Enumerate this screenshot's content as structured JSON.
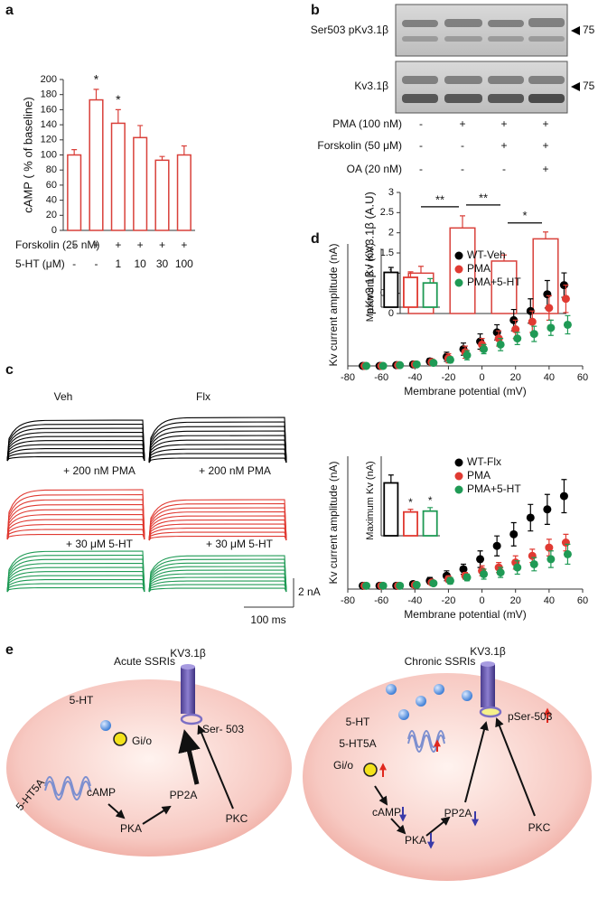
{
  "panel_labels": [
    "a",
    "b",
    "c",
    "d",
    "e"
  ],
  "blot": {
    "rows": [
      "Ser503 pKv3.1β",
      "Kv3.1β"
    ],
    "markers": [
      "75",
      "75"
    ]
  },
  "traces": {
    "left_labels": [
      "Veh",
      "+ 200 nM PMA",
      "+ 30 μM 5-HT"
    ],
    "right_labels": [
      "Flx",
      "+ 200 nM PMA",
      "+ 30 μM 5-HT"
    ],
    "scale_y": "2 nA",
    "scale_x": "100 ms"
  },
  "chart_data": [
    {
      "type": "bar",
      "ylabel": "cAMP ( % of baseline)",
      "color": "#d9403a",
      "values": [
        100,
        173,
        142,
        123,
        93,
        100
      ],
      "errors": [
        7,
        14,
        18,
        16,
        5,
        12
      ],
      "ylim": [
        0,
        200
      ],
      "yticks": [
        0,
        20,
        40,
        60,
        80,
        100,
        120,
        140,
        160,
        180,
        200
      ],
      "category_rows": [
        {
          "label": "Forskolin (25 nM)",
          "values": [
            "-",
            "+",
            "+",
            "+",
            "+",
            "+"
          ]
        },
        {
          "label": "5-HT (μM)",
          "values": [
            "-",
            "-",
            "1",
            "10",
            "30",
            "100"
          ]
        }
      ],
      "annotations": [
        {
          "index": 1,
          "text": "*"
        },
        {
          "index": 2,
          "text": "*"
        }
      ]
    },
    {
      "type": "bar",
      "ylabel": "pKv3.1β / KV3.1β (A.U)",
      "color": "#d9403a",
      "values": [
        1,
        2.12,
        1.3,
        1.85
      ],
      "errors": [
        0.17,
        0.3,
        0.15,
        0.17
      ],
      "ylim": [
        0,
        3
      ],
      "yticks": [
        0,
        0.5,
        1,
        1.5,
        2,
        2.5,
        3
      ],
      "category_rows": [
        {
          "label": "PMA (100 nM)",
          "values": [
            "-",
            "+",
            "+",
            "+"
          ]
        },
        {
          "label": "Forskolin (50 μM)",
          "values": [
            "-",
            "-",
            "+",
            "+"
          ]
        },
        {
          "label": "OA (20 nM)",
          "values": [
            "-",
            "-",
            "-",
            "+"
          ]
        }
      ],
      "brackets": [
        {
          "from": 0,
          "to": 1,
          "text": "**"
        },
        {
          "from": 1,
          "to": 2,
          "text": "**"
        },
        {
          "from": 2,
          "to": 3,
          "text": "*"
        }
      ]
    },
    {
      "type": "scatter",
      "xlabel": "Membrane potential (mV)",
      "ylabel": "Kv current amplitude (nA)",
      "legend": "top-right",
      "x": [
        -70,
        -60,
        -50,
        -40,
        -30,
        -20,
        -10,
        0,
        10,
        20,
        30,
        40,
        50
      ],
      "xlim": [
        -80,
        60
      ],
      "xticks": [
        -80,
        -60,
        -40,
        -20,
        0,
        20,
        40,
        60
      ],
      "ylim": [
        0,
        8
      ],
      "series": [
        {
          "name": "WT-Veh",
          "color": "#000000",
          "values": [
            0,
            0,
            0.05,
            0.1,
            0.3,
            0.6,
            1.1,
            1.6,
            2.2,
            3.0,
            3.6,
            4.7,
            5.3
          ],
          "errors": [
            0.05,
            0.05,
            0.05,
            0.1,
            0.2,
            0.3,
            0.4,
            0.5,
            0.5,
            0.7,
            0.8,
            0.9,
            0.8
          ]
        },
        {
          "name": "PMA",
          "color": "#e03a32",
          "values": [
            0,
            0,
            0.05,
            0.1,
            0.25,
            0.5,
            0.9,
            1.4,
            1.8,
            2.4,
            2.9,
            3.8,
            4.4
          ],
          "errors": [
            0.05,
            0.05,
            0.05,
            0.1,
            0.2,
            0.3,
            0.4,
            0.4,
            0.5,
            0.6,
            0.7,
            0.8,
            0.9
          ]
        },
        {
          "name": "PMA+5-HT",
          "color": "#1f9a55",
          "values": [
            0,
            0,
            0.05,
            0.1,
            0.2,
            0.4,
            0.7,
            1.1,
            1.4,
            1.8,
            2.1,
            2.5,
            2.7
          ],
          "errors": [
            0.05,
            0.05,
            0.05,
            0.1,
            0.15,
            0.2,
            0.3,
            0.3,
            0.4,
            0.4,
            0.5,
            0.5,
            0.6
          ]
        }
      ],
      "inset": {
        "ylabel": "Maximum Kv (nA)",
        "ylim": [
          0,
          8
        ],
        "values": [
          5.6,
          4.8,
          3.9
        ],
        "errors": [
          0.8,
          0.9,
          0.7
        ],
        "colors": [
          "#000000",
          "#e03a32",
          "#1f9a55"
        ]
      }
    },
    {
      "type": "scatter",
      "xlabel": "Membrane potential (mV)",
      "ylabel": "Kv current amplitude (nA)",
      "legend": "top-right",
      "x": [
        -70,
        -60,
        -50,
        -40,
        -30,
        -20,
        -10,
        0,
        10,
        20,
        30,
        40,
        50
      ],
      "xlim": [
        -80,
        60
      ],
      "xticks": [
        -80,
        -60,
        -40,
        -20,
        0,
        20,
        40,
        60
      ],
      "ylim": [
        0,
        8
      ],
      "series": [
        {
          "name": "WT-Flx",
          "color": "#000000",
          "values": [
            0.2,
            0.2,
            0.2,
            0.3,
            0.5,
            0.8,
            1.2,
            1.8,
            2.6,
            3.3,
            4.3,
            4.8,
            5.6
          ],
          "errors": [
            0.05,
            0.05,
            0.05,
            0.1,
            0.2,
            0.3,
            0.3,
            0.5,
            0.6,
            0.7,
            0.8,
            0.9,
            1.0
          ]
        },
        {
          "name": "PMA",
          "color": "#e03a32",
          "values": [
            0.2,
            0.2,
            0.2,
            0.25,
            0.4,
            0.6,
            0.8,
            1.1,
            1.3,
            1.6,
            2.0,
            2.5,
            2.8
          ],
          "errors": [
            0.05,
            0.05,
            0.05,
            0.1,
            0.1,
            0.2,
            0.2,
            0.3,
            0.3,
            0.4,
            0.4,
            0.5,
            0.5
          ]
        },
        {
          "name": "PMA+5-HT",
          "color": "#1f9a55",
          "values": [
            0.2,
            0.2,
            0.2,
            0.25,
            0.35,
            0.5,
            0.7,
            0.9,
            1.0,
            1.3,
            1.5,
            1.8,
            2.1
          ],
          "errors": [
            0.05,
            0.05,
            0.05,
            0.1,
            0.1,
            0.2,
            0.2,
            0.3,
            0.3,
            0.4,
            0.4,
            0.5,
            0.6
          ]
        }
      ],
      "inset": {
        "ylabel": "Maximum Kv (nA)",
        "ylim": [
          0,
          8
        ],
        "values": [
          6,
          2.7,
          2.8
        ],
        "errors": [
          0.9,
          0.3,
          0.4
        ],
        "colors": [
          "#000000",
          "#e03a32",
          "#1f9a55"
        ],
        "annotations": [
          {
            "index": 1,
            "text": "*"
          },
          {
            "index": 2,
            "text": "*"
          }
        ]
      }
    }
  ],
  "diagram": {
    "acute": {
      "title": "Acute SSRIs",
      "serotonin": "5-HT",
      "channel": "KV3.1β",
      "site": "Ser- 503",
      "gprotein": "Gi/o",
      "receptor": "5-HT5A",
      "camp": "cAMP",
      "pp2a": "PP2A",
      "pka": "PKA",
      "pkc": "PKC"
    },
    "chronic": {
      "title": "Chronic SSRIs",
      "serotonin": "5-HT",
      "channel": "KV3.1β",
      "site": "pSer-503",
      "gprotein": "Gi/o",
      "receptor": "5-HT5A",
      "camp": "cAMP",
      "pp2a": "PP2A",
      "pka": "PKA",
      "pkc": "PKC"
    }
  }
}
